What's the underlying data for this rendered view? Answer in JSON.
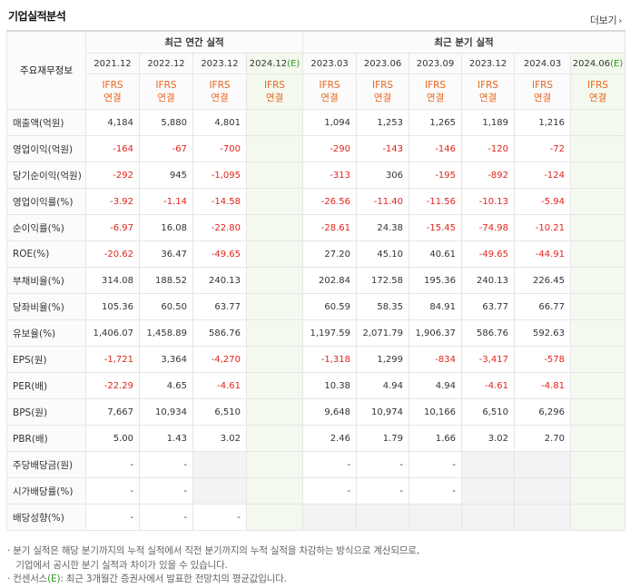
{
  "header": {
    "title": "기업실적분석",
    "more_label": "더보기",
    "more_arrow": "›"
  },
  "table": {
    "corner_label": "주요재무정보",
    "groups": {
      "annual": "최근 연간 실적",
      "quarter": "최근 분기 실적"
    },
    "periods": [
      "2021.12",
      "2022.12",
      "2023.12",
      "2024.12",
      "2023.03",
      "2023.06",
      "2023.09",
      "2023.12",
      "2024.03",
      "2024.06"
    ],
    "estimate_suffix": "(E)",
    "ifrs": {
      "line1": "IFRS",
      "line2": "연결"
    },
    "rows": [
      {
        "label": "매출액(억원)",
        "values": [
          "4,184",
          "5,880",
          "4,801",
          "",
          "1,094",
          "1,253",
          "1,265",
          "1,189",
          "1,216",
          ""
        ]
      },
      {
        "label": "영업이익(억원)",
        "values": [
          "-164",
          "-67",
          "-700",
          "",
          "-290",
          "-143",
          "-146",
          "-120",
          "-72",
          ""
        ]
      },
      {
        "label": "당기순이익(억원)",
        "values": [
          "-292",
          "945",
          "-1,095",
          "",
          "-313",
          "306",
          "-195",
          "-892",
          "-124",
          ""
        ]
      },
      {
        "label": "영업이익률(%)",
        "values": [
          "-3.92",
          "-1.14",
          "-14.58",
          "",
          "-26.56",
          "-11.40",
          "-11.56",
          "-10.13",
          "-5.94",
          ""
        ]
      },
      {
        "label": "순이익률(%)",
        "values": [
          "-6.97",
          "16.08",
          "-22.80",
          "",
          "-28.61",
          "24.38",
          "-15.45",
          "-74.98",
          "-10.21",
          ""
        ]
      },
      {
        "label": "ROE(%)",
        "values": [
          "-20.62",
          "36.47",
          "-49.65",
          "",
          "27.20",
          "45.10",
          "40.61",
          "-49.65",
          "-44.91",
          ""
        ]
      },
      {
        "label": "부채비율(%)",
        "values": [
          "314.08",
          "188.52",
          "240.13",
          "",
          "202.84",
          "172.58",
          "195.36",
          "240.13",
          "226.45",
          ""
        ]
      },
      {
        "label": "당좌비율(%)",
        "values": [
          "105.36",
          "60.50",
          "63.77",
          "",
          "60.59",
          "58.35",
          "84.91",
          "63.77",
          "66.77",
          ""
        ]
      },
      {
        "label": "유보율(%)",
        "values": [
          "1,406.07",
          "1,458.89",
          "586.76",
          "",
          "1,197.59",
          "2,071.79",
          "1,906.37",
          "586.76",
          "592.63",
          ""
        ]
      },
      {
        "label": "EPS(원)",
        "values": [
          "-1,721",
          "3,364",
          "-4,270",
          "",
          "-1,318",
          "1,299",
          "-834",
          "-3,417",
          "-578",
          ""
        ]
      },
      {
        "label": "PER(배)",
        "values": [
          "-22.29",
          "4.65",
          "-4.61",
          "",
          "10.38",
          "4.94",
          "4.94",
          "-4.61",
          "-4.81",
          ""
        ]
      },
      {
        "label": "BPS(원)",
        "values": [
          "7,667",
          "10,934",
          "6,510",
          "",
          "9,648",
          "10,974",
          "10,166",
          "6,510",
          "6,296",
          ""
        ]
      },
      {
        "label": "PBR(배)",
        "values": [
          "5.00",
          "1.43",
          "3.02",
          "",
          "2.46",
          "1.79",
          "1.66",
          "3.02",
          "2.70",
          ""
        ]
      },
      {
        "label": "주당배당금(원)",
        "values": [
          "-",
          "-",
          "",
          "",
          "-",
          "-",
          "-",
          "",
          "",
          ""
        ]
      },
      {
        "label": "시가배당률(%)",
        "values": [
          "-",
          "-",
          "",
          "",
          "-",
          "-",
          "-",
          "",
          "",
          ""
        ]
      },
      {
        "label": "배당성향(%)",
        "values": [
          "-",
          "-",
          "-",
          "",
          "",
          "",
          "",
          "",
          "",
          ""
        ]
      }
    ]
  },
  "notes": {
    "line1": "· 분기 실적은 해당 분기까지의 누적 실적에서 직전 분기까지의 누적 실적을 차감하는 방식으로 계산되므로,",
    "line2": "  기업에서 공시한 분기 실적과 차이가 있을 수 있습니다.",
    "line3_pre": "· 컨센서스",
    "line3_e": "(E)",
    "line3_post": ": 최근 3개월간 증권사에서 발표한 전망치의 평균값입니다."
  },
  "colors": {
    "negative": "#e2231a",
    "ifrs": "#e8651e",
    "estimate": "#2c9a1f",
    "estimate_bg": "#f3f9ee"
  }
}
